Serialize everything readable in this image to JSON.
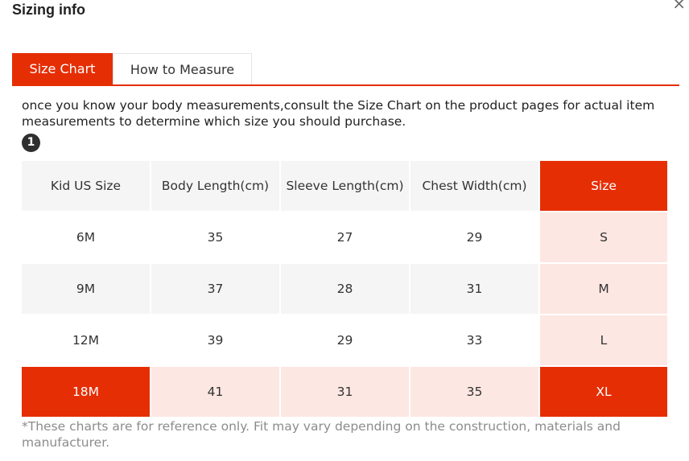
{
  "modal": {
    "title": "Sizing info",
    "close_symbol": "×"
  },
  "tabs": [
    {
      "label": "Size Chart",
      "active": true
    },
    {
      "label": "How to Measure",
      "active": false
    }
  ],
  "intro_text": "once you know your body measurements,consult the Size Chart on the product pages for actual item measurements to determine which size you should purchase.",
  "step_number": "1",
  "table": {
    "headers": [
      "Kid US Size",
      "Body Length(cm)",
      "Sleeve Length(cm)",
      "Chest Width(cm)",
      "Size"
    ],
    "rows": [
      [
        "6M",
        "35",
        "27",
        "29",
        "S"
      ],
      [
        "9M",
        "37",
        "28",
        "31",
        "M"
      ],
      [
        "12M",
        "39",
        "29",
        "33",
        "L"
      ],
      [
        "18M",
        "41",
        "31",
        "35",
        "XL"
      ]
    ],
    "highlighted_row": "18M",
    "highlighted_column": "Size"
  },
  "footnote": "*These charts are for reference only. Fit may vary depending on the construction, materials and manufacturer.",
  "colors": {
    "accent": "#e62e04",
    "highlight_light": "#fde7e2",
    "header_bg": "#f5f5f5"
  },
  "icons": {
    "close": "close-icon",
    "step": "step-number-icon"
  }
}
